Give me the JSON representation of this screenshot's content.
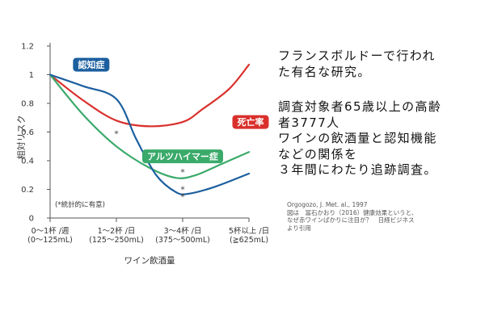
{
  "chart_data": {
    "type": "line",
    "ylabel": "相対リスク",
    "xlabel": "ワイン飲酒量",
    "ylim": [
      0,
      1.2
    ],
    "y_ticks": [
      "0",
      "0.2",
      "0.4",
      "0.6",
      "0.8",
      "1",
      "1.2"
    ],
    "x_categories": [
      [
        "0～1杯 /週",
        "(0～125mL)"
      ],
      [
        "1～2杯 /日",
        "(125～250mL)"
      ],
      [
        "3～4杯 /日",
        "(375～500mL)"
      ],
      [
        "5杯以上 /日",
        "(≧625mL)"
      ]
    ],
    "annotation": "(*統計的に有意)",
    "significance_marker": "*",
    "series": [
      {
        "name": "死亡率",
        "color": "#d9302c",
        "points": [
          [
            0,
            1.0
          ],
          [
            0.5,
            0.82
          ],
          [
            1.0,
            0.68
          ],
          [
            1.5,
            0.64
          ],
          [
            2.0,
            0.67
          ],
          [
            2.3,
            0.76
          ],
          [
            2.7,
            0.9
          ],
          [
            3.0,
            1.07
          ]
        ],
        "markers": []
      },
      {
        "name": "アルツハイマー症",
        "color": "#3aaa6a",
        "points": [
          [
            0,
            1.0
          ],
          [
            0.5,
            0.72
          ],
          [
            1.0,
            0.5
          ],
          [
            1.5,
            0.35
          ],
          [
            1.9,
            0.28
          ],
          [
            2.2,
            0.3
          ],
          [
            2.6,
            0.38
          ],
          [
            3.0,
            0.46
          ]
        ],
        "markers": [
          [
            1.0,
            0.59
          ],
          [
            2.0,
            0.32
          ]
        ]
      },
      {
        "name": "認知症",
        "color": "#1c5f9f",
        "points": [
          [
            0,
            1.0
          ],
          [
            0.5,
            0.92
          ],
          [
            1.0,
            0.83
          ],
          [
            1.3,
            0.55
          ],
          [
            1.6,
            0.3
          ],
          [
            1.9,
            0.18
          ],
          [
            2.1,
            0.17
          ],
          [
            2.5,
            0.22
          ],
          [
            3.0,
            0.31
          ]
        ],
        "markers": [
          [
            2.0,
            0.2
          ],
          [
            2.0,
            0.15
          ]
        ]
      }
    ]
  },
  "notes": {
    "lines_1": [
      "フランスボルドーで行われ",
      "た有名な研究。"
    ],
    "lines_2": [
      "調査対象者65歳以上の高齢",
      "者3777人",
      "ワインの飲酒量と認知機能",
      "などの関係を",
      "３年間にわたり追跡調査。"
    ]
  },
  "source": {
    "lines": [
      "Orgogozo, J. Met. al., 1997",
      "図は　冨石かおり（2016）健康効果というと、",
      "なぜ赤ワインばかりに注目が？　日経ビジネス",
      "より引用"
    ]
  }
}
